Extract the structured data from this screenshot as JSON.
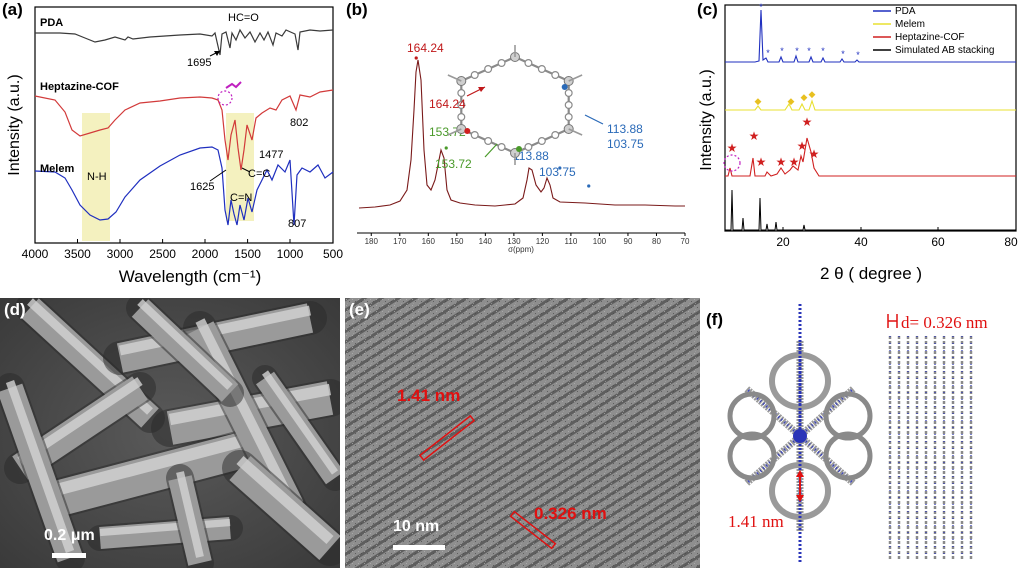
{
  "figure": {
    "panels": [
      "(a)",
      "(b)",
      "(c)",
      "(d)",
      "(e)",
      "(f)"
    ]
  },
  "chart_data": [
    {
      "type": "line",
      "panel": "(a)",
      "xlabel": "Wavelength (cm⁻¹)",
      "ylabel": "Intensity (a.u.)",
      "xlim": [
        4000,
        500
      ],
      "xticks": [
        4000,
        3500,
        3000,
        2500,
        2000,
        1500,
        1000,
        500
      ],
      "series": [
        {
          "name": "PDA",
          "color": "#3a3a3a"
        },
        {
          "name": "Heptazine-COF",
          "color": "#d23a3a"
        },
        {
          "name": "Melem",
          "color": "#1f2fbf"
        }
      ],
      "annotations": [
        "HC=O",
        "1695",
        "802",
        "1477",
        "C=C",
        "1625",
        "C=N",
        "N-H",
        "807"
      ],
      "shaded_regions": [
        [
          3450,
          3100
        ],
        [
          1650,
          1350
        ]
      ]
    },
    {
      "type": "line",
      "panel": "(b)",
      "xlabel": "σ(ppm)",
      "xlim": [
        185,
        70
      ],
      "xticks": [
        180,
        170,
        160,
        150,
        140,
        130,
        120,
        110,
        100,
        90,
        80,
        70
      ],
      "peaks": [
        {
          "x": 164.24,
          "label": "164.24",
          "color": "#c0181a"
        },
        {
          "x": 153.72,
          "label": "153.72",
          "color": "#4a9a2a"
        },
        {
          "x": 113.88,
          "label": "113.88",
          "color": "#2a6ab8"
        },
        {
          "x": 103.75,
          "label": "103.75",
          "color": "#2a6ab8"
        }
      ],
      "structure_labels": [
        {
          "text": "164.24",
          "color": "#c0181a"
        },
        {
          "text": "153.72",
          "color": "#4a9a2a"
        },
        {
          "text": "113.88",
          "color": "#2a6ab8"
        },
        {
          "text": "103.75",
          "color": "#2a6ab8"
        }
      ]
    },
    {
      "type": "line",
      "panel": "(c)",
      "xlabel": "2 θ ( degree )",
      "ylabel": "Intensity (a.u.)",
      "xlim": [
        5,
        80
      ],
      "xticks": [
        20,
        40,
        60,
        80
      ],
      "legend_position": "top-right",
      "series": [
        {
          "name": "PDA",
          "color": "#1f2fbf"
        },
        {
          "name": "Melem",
          "color": "#e8e030"
        },
        {
          "name": "Heptazine-COF",
          "color": "#d02020"
        },
        {
          "name": "Simulated AB stacking",
          "color": "#000000"
        }
      ]
    }
  ],
  "micrographs": {
    "d": {
      "scale_bar": "0.2 μm"
    },
    "e": {
      "scale_bar": "10 nm",
      "label_1": "1.41 nm",
      "label_2": "0.326 nm"
    },
    "f": {
      "d_label": "d= 0.326 nm",
      "pore_label": "1.41 nm"
    }
  }
}
